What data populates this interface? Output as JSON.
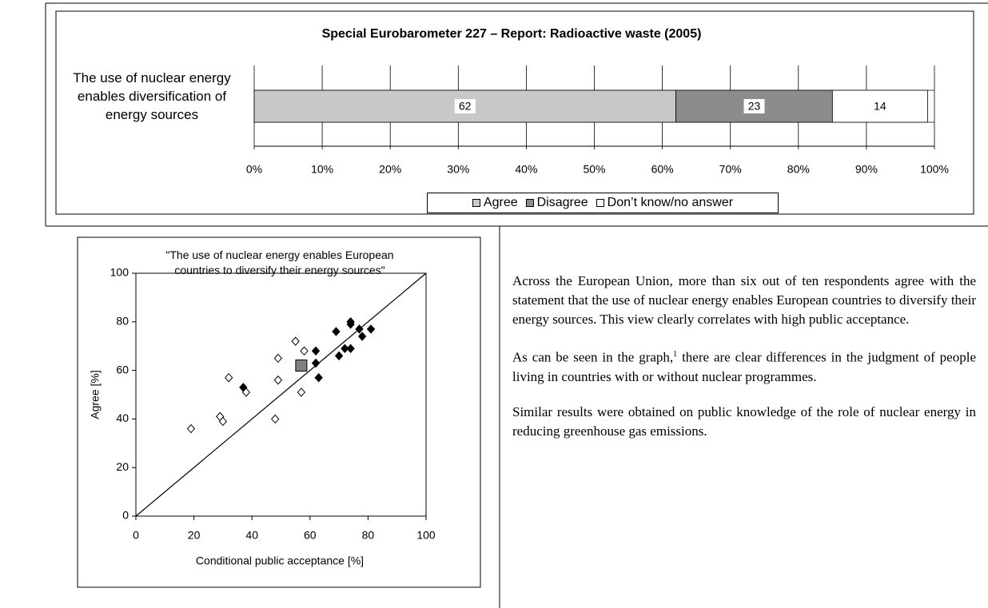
{
  "chart_data": [
    {
      "type": "bar",
      "orientation": "horizontal",
      "stacked": true,
      "title": "Special Eurobarometer 227 – Report: Radioactive waste (2005)",
      "categories": [
        "The use of nuclear energy enables diversification of energy sources"
      ],
      "series": [
        {
          "name": "Agree",
          "color": "#c8c8c8",
          "values": [
            62
          ]
        },
        {
          "name": "Disagree",
          "color": "#8c8c8c",
          "values": [
            23
          ]
        },
        {
          "name": "Don’t know/no answer",
          "color": "#ffffff",
          "values": [
            14
          ]
        }
      ],
      "xlim": [
        0,
        100
      ],
      "xticks": [
        {
          "value": 0,
          "label": "0%"
        },
        {
          "value": 10,
          "label": "10%"
        },
        {
          "value": 20,
          "label": "20%"
        },
        {
          "value": 30,
          "label": "30%"
        },
        {
          "value": 40,
          "label": "40%"
        },
        {
          "value": 50,
          "label": "50%"
        },
        {
          "value": 60,
          "label": "60%"
        },
        {
          "value": 70,
          "label": "70%"
        },
        {
          "value": 80,
          "label": "80%"
        },
        {
          "value": 90,
          "label": "90%"
        },
        {
          "value": 100,
          "label": "100%"
        }
      ],
      "grid": true,
      "legend": "bottom"
    },
    {
      "type": "scatter",
      "title": "\"The use of nuclear energy enables European countries to diversify their energy sources\"",
      "xlabel": "Conditional public acceptance [%]",
      "ylabel": "Agree [%]",
      "xlim": [
        0,
        100
      ],
      "ylim": [
        0,
        100
      ],
      "xticks": [
        0,
        20,
        40,
        60,
        80,
        100
      ],
      "yticks": [
        0,
        20,
        40,
        60,
        80,
        100
      ],
      "series": [
        {
          "marker": "diamond",
          "color": "#000000",
          "filled": false,
          "x": [
            19,
            29,
            30,
            32,
            38,
            48,
            49,
            49,
            55,
            57,
            58
          ],
          "values": [
            36,
            41,
            39,
            57,
            51,
            40,
            56,
            65,
            72,
            51,
            68
          ]
        },
        {
          "marker": "diamond",
          "color": "#000000",
          "filled": true,
          "x": [
            37,
            62,
            62,
            63,
            69,
            70,
            72,
            74,
            74,
            74,
            77,
            78,
            81
          ],
          "values": [
            53,
            68,
            63,
            57,
            76,
            66,
            69,
            69,
            80,
            79,
            77,
            74,
            77
          ]
        },
        {
          "marker": "square",
          "color": "#808080",
          "filled": true,
          "x": [
            57
          ],
          "values": [
            62
          ]
        }
      ]
    }
  ],
  "text": {
    "p1": "Across the European Union, more than six out of ten respondents agree with the statement that the use of nuclear energy enables European countries to diversify their energy sources. This view clearly correlates with high public acceptance.",
    "p2a": "As can be seen in the graph,",
    "p2note": "1",
    "p2b": " there are clear differences in the judgment of people living in countries with or without nuclear programmes.",
    "p3": "Similar results were obtained on public knowledge of the role of nuclear energy in reducing greenhouse gas emissions."
  }
}
